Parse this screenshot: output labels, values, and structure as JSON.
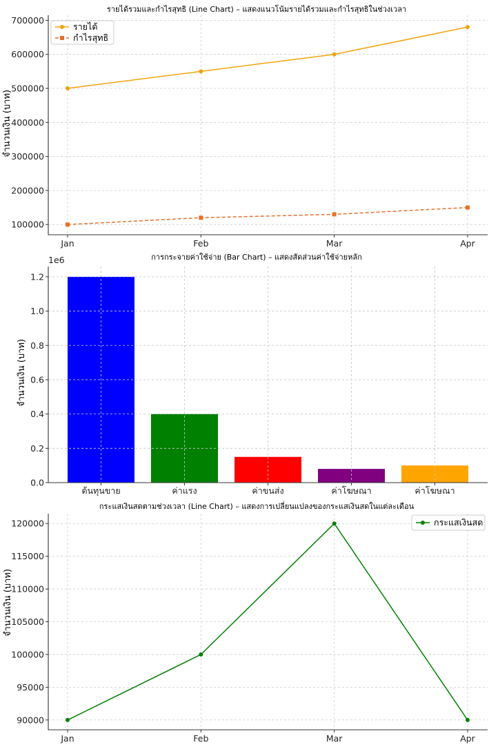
{
  "chart_data": [
    {
      "type": "line",
      "title": "รายได้รวมและกำไรสุทธิ (Line Chart) – แสดงแนวโน้มรายได้รวมและกำไรสุทธิในช่วงเวลา",
      "xlabel": "",
      "ylabel": "จำนวนเงิน (บาท)",
      "categories": [
        "Jan",
        "Feb",
        "Mar",
        "Apr"
      ],
      "ylim": [
        70000,
        715000
      ],
      "yticks": [
        100000,
        200000,
        300000,
        400000,
        500000,
        600000,
        700000
      ],
      "grid": true,
      "legend": "top-left",
      "series": [
        {
          "name": "รายได้",
          "values": [
            500000,
            550000,
            600000,
            680000
          ],
          "color": "#f0a30a",
          "marker": "circle",
          "line": "solid"
        },
        {
          "name": "กำไรสุทธิ",
          "values": [
            100000,
            120000,
            130000,
            150000
          ],
          "color": "#e8702a",
          "marker": "square",
          "line": "dashed"
        }
      ]
    },
    {
      "type": "bar",
      "title": "การกระจายค่าใช้จ่าย (Bar Chart) – แสดงสัดส่วนค่าใช้จ่ายหลัก",
      "xlabel": "",
      "ylabel": "จำนวนเงิน (บาท)",
      "scale_label": "1e6",
      "categories": [
        "ต้นทุนขาย",
        "ค่าแรง",
        "ค่าขนส่ง",
        "ค่าโฆษณา",
        "ค่าโฆษณา"
      ],
      "values": [
        1.2,
        0.4,
        0.15,
        0.08,
        0.1
      ],
      "colors": [
        "#0000ff",
        "#008000",
        "#ff0000",
        "#800080",
        "#ffa500"
      ],
      "ylim": [
        0,
        1.26
      ],
      "yticks": [
        0.0,
        0.2,
        0.4,
        0.6,
        0.8,
        1.0,
        1.2
      ],
      "ytick_labels": [
        "0.0",
        "0.2",
        "0.4",
        "0.6",
        "0.8",
        "1.0",
        "1.2"
      ],
      "grid": true
    },
    {
      "type": "line",
      "title": "กระแสเงินสดตามช่วงเวลา (Line Chart) – แสดงการเปลี่ยนแปลงของกระแสเงินสดในแต่ละเดือน",
      "xlabel": "",
      "ylabel": "จำนวนเงิน (บาท)",
      "categories": [
        "Jan",
        "Feb",
        "Mar",
        "Apr"
      ],
      "ylim": [
        88500,
        121500
      ],
      "yticks": [
        90000,
        95000,
        100000,
        105000,
        110000,
        115000,
        120000
      ],
      "grid": true,
      "legend": "top-right",
      "series": [
        {
          "name": "กระแสเงินสด",
          "values": [
            90000,
            100000,
            120000,
            90000
          ],
          "color": "#008000",
          "marker": "circle",
          "line": "solid"
        }
      ]
    }
  ]
}
